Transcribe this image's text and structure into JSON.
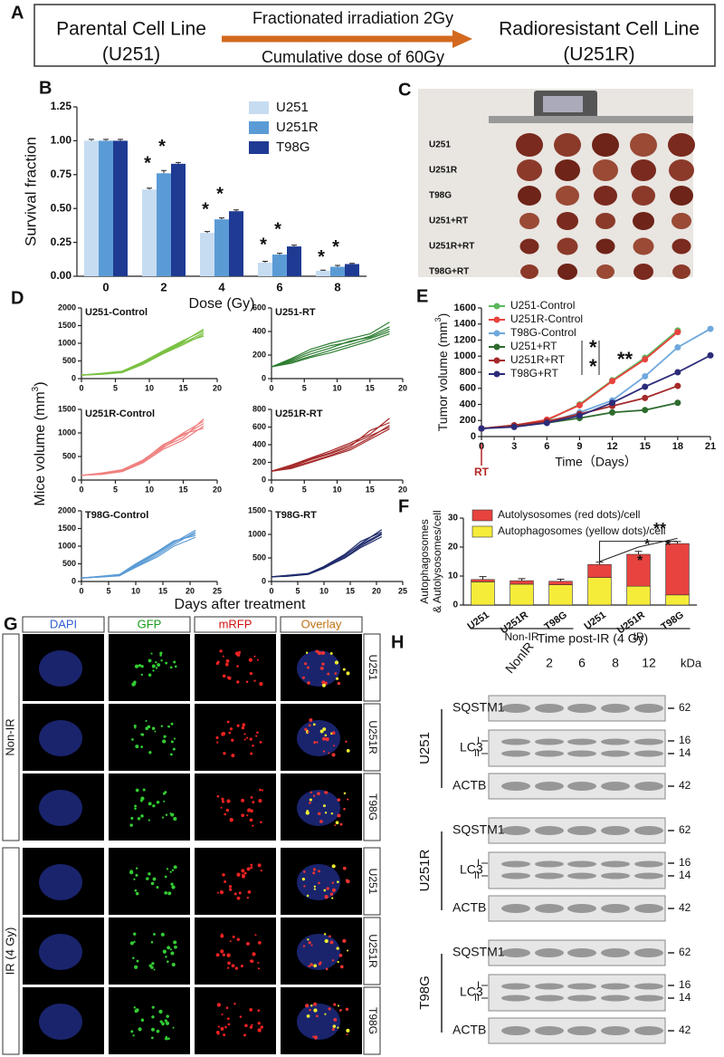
{
  "panel_a": {
    "label": "A",
    "left": [
      "Parental Cell Line",
      "(U251)"
    ],
    "arrow_top": "Fractionated irradiation 2Gy",
    "arrow_bottom": "Cumulative dose of 60Gy",
    "right": [
      "Radioresistant Cell Line",
      "(U251R)"
    ]
  },
  "panel_c": {
    "label": "C",
    "rows": [
      "U251",
      "U251R",
      "T98G",
      "U251+RT",
      "U251R+RT",
      "T98G+RT"
    ]
  },
  "panel_d": {
    "label": "D",
    "y_label": [
      "Mice volume (mm",
      "3",
      ")"
    ],
    "x_label": "Days after treatment"
  },
  "chart_data": [
    {
      "type": "bar",
      "panel": "B",
      "y_label": "Survival fraction",
      "x_label": "Dose (Gy)",
      "categories": [
        "0",
        "2",
        "4",
        "6",
        "8"
      ],
      "ylim": [
        0,
        1.25
      ],
      "yticks": [
        {
          "value": 0,
          "label": "0.00"
        },
        {
          "value": 0.25,
          "label": "0.25"
        },
        {
          "value": 0.5,
          "label": "0.50"
        },
        {
          "value": 0.75,
          "label": "0.75"
        },
        {
          "value": 1,
          "label": "1.00"
        },
        1.25
      ],
      "legend": "upper right",
      "annotations": [
        "*",
        "*",
        "*",
        "*",
        "*",
        "*",
        "*",
        "*"
      ],
      "series": [
        {
          "name": "U251",
          "color": "#c6dcf1",
          "values": [
            1.0,
            0.64,
            0.32,
            0.1,
            0.04
          ],
          "errors": [
            0.01,
            0.01,
            0.01,
            0.01,
            0.005
          ]
        },
        {
          "name": "U251R",
          "color": "#5b9bd5",
          "values": [
            1.0,
            0.76,
            0.42,
            0.16,
            0.07
          ],
          "errors": [
            0.01,
            0.02,
            0.01,
            0.01,
            0.01
          ]
        },
        {
          "name": "T98G",
          "color": "#1f3a93",
          "values": [
            1.0,
            0.83,
            0.48,
            0.22,
            0.09
          ],
          "errors": [
            0.01,
            0.01,
            0.01,
            0.01,
            0.005
          ]
        }
      ]
    },
    {
      "type": "line",
      "title": "U251-Control",
      "color": "#7ac143",
      "x": [
        0,
        3,
        6,
        9,
        12,
        15,
        18
      ],
      "xlim": [
        0,
        20
      ],
      "xticks": [
        0,
        5,
        10,
        15,
        20
      ],
      "ylim": [
        0,
        2000
      ],
      "yticks": [
        0,
        500,
        1000,
        1500,
        2000
      ],
      "series": [
        {
          "values": [
            100,
            130,
            180,
            420,
            720,
            1000,
            1300
          ]
        },
        {
          "values": [
            100,
            140,
            200,
            450,
            760,
            1050,
            1400
          ]
        },
        {
          "values": [
            100,
            120,
            170,
            400,
            700,
            960,
            1250
          ]
        },
        {
          "values": [
            100,
            150,
            210,
            470,
            780,
            1080,
            1350
          ]
        },
        {
          "values": [
            100,
            135,
            190,
            430,
            740,
            1020,
            1200
          ]
        }
      ]
    },
    {
      "type": "line",
      "title": "U251-RT",
      "color": "#2e7d32",
      "x": [
        0,
        3,
        6,
        9,
        12,
        15,
        18
      ],
      "xlim": [
        0,
        20
      ],
      "xticks": [
        0,
        5,
        10,
        15,
        20
      ],
      "ylim": [
        0,
        600
      ],
      "yticks": [
        0,
        200,
        400,
        600
      ],
      "series": [
        {
          "values": [
            100,
            170,
            250,
            300,
            340,
            380,
            480
          ]
        },
        {
          "values": [
            100,
            150,
            210,
            260,
            320,
            350,
            420
          ]
        },
        {
          "values": [
            100,
            140,
            190,
            240,
            290,
            340,
            400
          ]
        },
        {
          "values": [
            100,
            130,
            180,
            220,
            270,
            320,
            380
          ]
        },
        {
          "values": [
            100,
            160,
            230,
            280,
            310,
            360,
            440
          ]
        }
      ]
    },
    {
      "type": "line",
      "title": "U251R-Control",
      "color": "#f08080",
      "x": [
        0,
        3,
        6,
        9,
        12,
        15,
        18
      ],
      "xlim": [
        0,
        20
      ],
      "xticks": [
        0,
        5,
        10,
        15,
        20
      ],
      "ylim": [
        0,
        1500
      ],
      "yticks": [
        0,
        500,
        1000,
        1500
      ],
      "series": [
        {
          "values": [
            100,
            130,
            200,
            380,
            700,
            900,
            1300
          ]
        },
        {
          "values": [
            100,
            150,
            220,
            420,
            720,
            1000,
            1250
          ]
        },
        {
          "values": [
            100,
            120,
            180,
            360,
            650,
            850,
            1150
          ]
        },
        {
          "values": [
            100,
            140,
            210,
            400,
            750,
            950,
            1200
          ]
        },
        {
          "values": [
            100,
            135,
            190,
            390,
            680,
            980,
            1100
          ]
        }
      ]
    },
    {
      "type": "line",
      "title": "U251R-RT",
      "color": "#a52a2a",
      "x": [
        0,
        3,
        6,
        9,
        12,
        15,
        18
      ],
      "xlim": [
        0,
        20
      ],
      "xticks": [
        0,
        5,
        10,
        15,
        20
      ],
      "ylim": [
        0,
        800
      ],
      "yticks": [
        0,
        200,
        400,
        600,
        800
      ],
      "series": [
        {
          "values": [
            100,
            170,
            250,
            330,
            420,
            520,
            700
          ]
        },
        {
          "values": [
            100,
            150,
            230,
            300,
            380,
            560,
            650
          ]
        },
        {
          "values": [
            100,
            140,
            210,
            280,
            360,
            480,
            620
          ]
        },
        {
          "values": [
            100,
            160,
            240,
            310,
            400,
            500,
            600
          ]
        },
        {
          "values": [
            100,
            130,
            200,
            270,
            340,
            460,
            580
          ]
        }
      ]
    },
    {
      "type": "line",
      "title": "T98G-Control",
      "color": "#5b9bd5",
      "x": [
        0,
        3,
        7,
        10,
        14,
        17,
        21
      ],
      "xlim": [
        0,
        25
      ],
      "xticks": [
        0,
        5,
        10,
        15,
        20,
        25
      ],
      "ylim": [
        0,
        2000
      ],
      "yticks": [
        0,
        500,
        1000,
        1500,
        2000
      ],
      "series": [
        {
          "values": [
            100,
            130,
            180,
            450,
            800,
            1100,
            1450
          ]
        },
        {
          "values": [
            100,
            120,
            160,
            420,
            750,
            1050,
            1400
          ]
        },
        {
          "values": [
            100,
            140,
            200,
            500,
            850,
            1150,
            1300
          ]
        },
        {
          "values": [
            100,
            125,
            170,
            400,
            700,
            1000,
            1250
          ]
        },
        {
          "values": [
            100,
            135,
            190,
            480,
            820,
            1120,
            1350
          ]
        }
      ]
    },
    {
      "type": "line",
      "title": "T98G-RT",
      "color": "#1f2a6b",
      "x": [
        0,
        3,
        7,
        10,
        14,
        17,
        21
      ],
      "xlim": [
        0,
        25
      ],
      "xticks": [
        0,
        5,
        10,
        15,
        20,
        25
      ],
      "ylim": [
        0,
        1500
      ],
      "yticks": [
        0,
        500,
        1000,
        1500
      ],
      "series": [
        {
          "values": [
            100,
            120,
            160,
            300,
            550,
            800,
            1100
          ]
        },
        {
          "values": [
            100,
            110,
            150,
            280,
            520,
            750,
            1000
          ]
        },
        {
          "values": [
            100,
            130,
            170,
            320,
            580,
            850,
            1050
          ]
        },
        {
          "values": [
            100,
            115,
            155,
            290,
            500,
            720,
            950
          ]
        },
        {
          "values": [
            100,
            125,
            165,
            310,
            560,
            780,
            1020
          ]
        }
      ]
    },
    {
      "type": "line",
      "panel": "E",
      "markers": true,
      "legend": "upper left",
      "y_label": [
        "Tumor volume (mm",
        "3",
        ")"
      ],
      "x_label": "Time（Days）",
      "annotations": [
        "RT",
        "*",
        "*",
        "**"
      ],
      "xlim": [
        0,
        21
      ],
      "xticks": [
        0,
        3,
        6,
        9,
        12,
        15,
        18,
        21
      ],
      "ylim": [
        0,
        1600
      ],
      "yticks": [
        0,
        200,
        400,
        600,
        800,
        1000,
        1200,
        1400,
        1600
      ],
      "series": [
        {
          "name": "U251-Control",
          "color": "#5cb85c",
          "x": [
            0,
            3,
            6,
            9,
            12,
            15,
            18
          ],
          "values": [
            100,
            140,
            200,
            400,
            700,
            980,
            1320
          ]
        },
        {
          "name": "U251R-Control",
          "color": "#e8433f",
          "x": [
            0,
            3,
            6,
            9,
            12,
            15,
            18
          ],
          "values": [
            100,
            140,
            210,
            390,
            690,
            960,
            1300
          ]
        },
        {
          "name": "T98G-Control",
          "color": "#6fa8dc",
          "x": [
            0,
            3,
            6,
            9,
            12,
            15,
            18,
            21
          ],
          "values": [
            100,
            130,
            170,
            300,
            450,
            750,
            1110,
            1340
          ]
        },
        {
          "name": "U251+RT",
          "color": "#2e6b2e",
          "x": [
            0,
            3,
            6,
            9,
            12,
            15,
            18
          ],
          "values": [
            100,
            130,
            170,
            230,
            300,
            330,
            420
          ]
        },
        {
          "name": "U251R+RT",
          "color": "#a52a2a",
          "x": [
            0,
            3,
            6,
            9,
            12,
            15,
            18
          ],
          "values": [
            100,
            140,
            190,
            280,
            380,
            480,
            630
          ]
        },
        {
          "name": "T98G+RT",
          "color": "#2b2b7a",
          "x": [
            0,
            3,
            6,
            9,
            12,
            15,
            18,
            21
          ],
          "values": [
            100,
            120,
            170,
            260,
            420,
            620,
            800,
            1010
          ]
        }
      ]
    },
    {
      "type": "stacked_bar",
      "panel": "F",
      "y_label": [
        "Autophagosomes",
        "& Autolysosomes/cell"
      ],
      "categories": [
        "U251",
        "U251R",
        "T98G",
        "U251",
        "U251R",
        "T98G"
      ],
      "group_labels": [
        "Non-IR",
        "IR"
      ],
      "ylim": [
        0,
        30
      ],
      "yticks": [
        0,
        10,
        20,
        30
      ],
      "legend": "upper left",
      "annotations": [
        "*",
        "*",
        "**",
        "*"
      ],
      "series": [
        {
          "name": "Autophagosomes (yellow dots)/cell",
          "color": "#f5ec3a",
          "values": [
            8,
            7.2,
            7,
            9.5,
            6.5,
            3.5
          ],
          "errors": [
            0,
            0,
            0,
            1.5,
            0.5,
            0.5
          ]
        },
        {
          "name": "Autolysosomes (red dots)/cell",
          "color": "#e8433f",
          "values": [
            0.8,
            1.2,
            1.2,
            4.5,
            11,
            17.7
          ],
          "errors": [
            1,
            0.7,
            0.7,
            0.8,
            1,
            0.7
          ]
        }
      ]
    }
  ],
  "panel_g": {
    "label": "G",
    "columns": [
      "DAPI",
      "GFP",
      "mRFP",
      "Overlay"
    ],
    "rows": [
      "U251",
      "U251R",
      "T98G",
      "U251",
      "U251R",
      "T98G"
    ],
    "groups": [
      "Non-IR",
      "IR (4 Gy)"
    ]
  },
  "panel_h": {
    "label": "H",
    "lanes": [
      "NonIR",
      "2",
      "6",
      "8",
      "12"
    ],
    "time_label": "Time post-IR (4 Gy)",
    "kda_label": "kDa",
    "blocks": [
      {
        "cell": "U251",
        "proteins": [
          "SQSTM1",
          "LC3",
          "ACTB"
        ],
        "forms": [
          "I",
          "II"
        ],
        "kda": [
          62,
          16,
          14,
          42
        ]
      },
      {
        "cell": "U251R",
        "proteins": [
          "SQSTM1",
          "LC3",
          "ACTB"
        ],
        "forms": [
          "I",
          "II"
        ],
        "kda": [
          62,
          16,
          14,
          42
        ]
      },
      {
        "cell": "T98G",
        "proteins": [
          "SQSTM1",
          "LC3",
          "ACTB"
        ],
        "forms": [
          "I",
          "II"
        ],
        "kda": [
          62,
          16,
          14,
          42
        ]
      }
    ]
  }
}
